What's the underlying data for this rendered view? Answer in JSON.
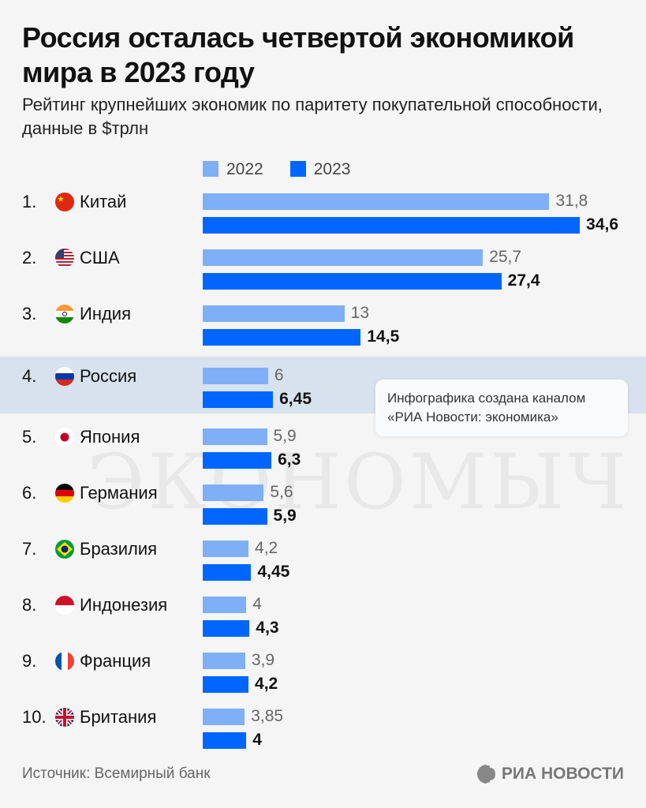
{
  "title": "Россия осталась четвертой экономикой мира в 2023 году",
  "subtitle": "Рейтинг крупнейших экономик по паритету покупательной способности, данные в $трлн",
  "watermark": "ЭКОНОМЫЧ",
  "note": "Инфографика создана каналом «РИА Новости: экономика»",
  "source": "Источник: Всемирный банк",
  "logo": "РИА НОВОСТИ",
  "colors": {
    "y2022": "#7fb0f7",
    "y2023": "#0066ff",
    "highlight": "#d7e2ee"
  },
  "chart_data": {
    "type": "bar",
    "orientation": "horizontal",
    "title": "Россия осталась четвертой экономикой мира в 2023 году",
    "unit": "$трлн",
    "categories": [
      "Китай",
      "США",
      "Индия",
      "Россия",
      "Япония",
      "Германия",
      "Бразилия",
      "Индонезия",
      "Франция",
      "Британия"
    ],
    "ranks": [
      "1.",
      "2.",
      "3.",
      "4.",
      "5.",
      "6.",
      "7.",
      "8.",
      "9.",
      "10."
    ],
    "flags": [
      "flag-china",
      "flag-usa",
      "flag-india",
      "flag-russia",
      "flag-japan",
      "flag-germany",
      "flag-brazil",
      "flag-indonesia",
      "flag-france",
      "flag-uk"
    ],
    "highlight": "Россия",
    "series": [
      {
        "name": "2022",
        "values": [
          31.8,
          25.7,
          13,
          6,
          5.9,
          5.6,
          4.2,
          4,
          3.9,
          3.85
        ],
        "labels": [
          "31,8",
          "25,7",
          "13",
          "6",
          "5,9",
          "5,6",
          "4,2",
          "4",
          "3,9",
          "3,85"
        ]
      },
      {
        "name": "2023",
        "values": [
          34.6,
          27.4,
          14.5,
          6.45,
          6.3,
          5.9,
          4.45,
          4.3,
          4.2,
          4
        ],
        "labels": [
          "34,6",
          "27,4",
          "14,5",
          "6,45",
          "6,3",
          "5,9",
          "4,45",
          "4,3",
          "4,2",
          "4"
        ]
      }
    ],
    "legend": "top"
  }
}
